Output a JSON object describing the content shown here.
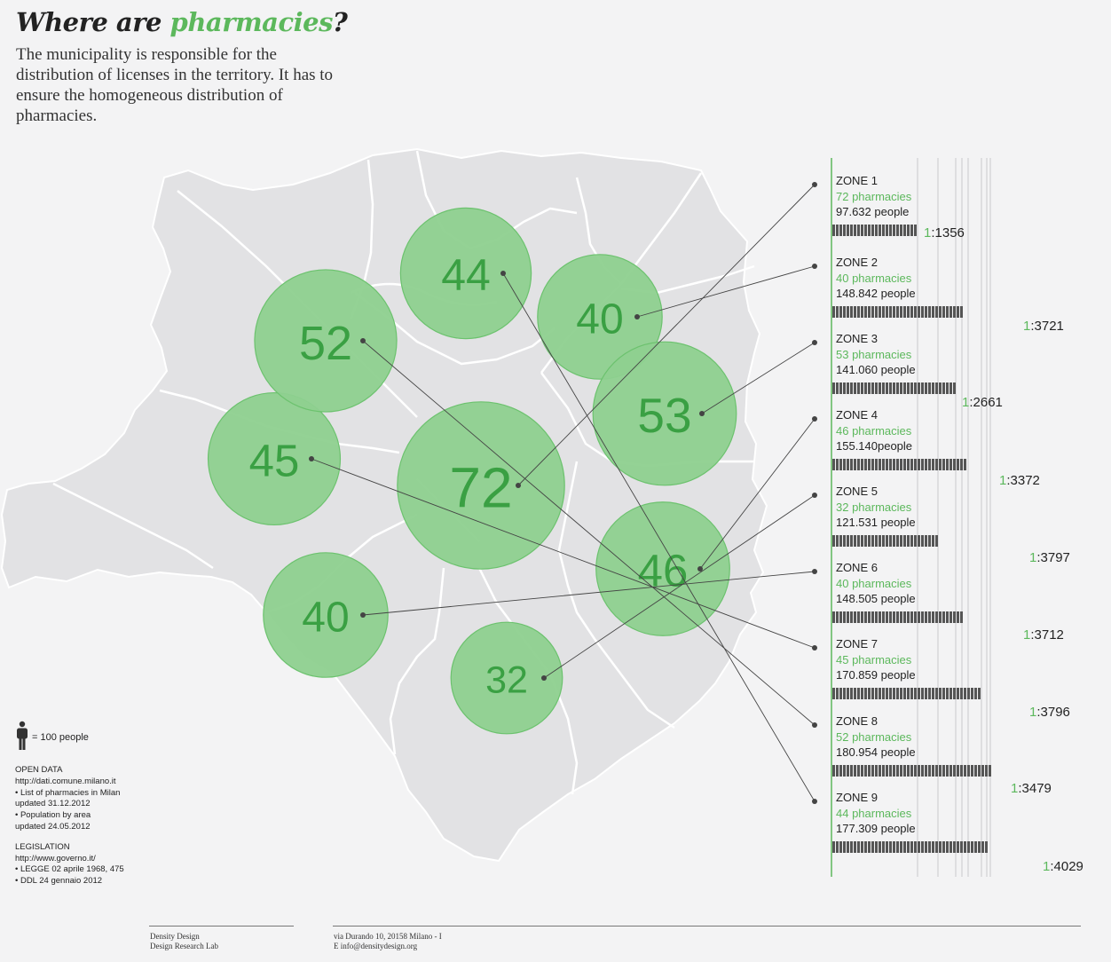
{
  "title": {
    "prefix": "Where are ",
    "highlight": "pharmacies",
    "suffix": "?"
  },
  "subtitle": "The municipality is responsible for the distribution of licenses in the territory. It has to ensure the homogeneous distribution of pharmacies.",
  "colors": {
    "accent": "#5cb85c",
    "bubble": "#8ed08f",
    "map": "#e2e2e4",
    "person": "#555555"
  },
  "legend": {
    "icon": "person-icon",
    "text": "= 100 people"
  },
  "notes": {
    "open_data_title": "OPEN DATA",
    "open_data_lines": [
      "http://dati.comune.milano.it",
      "• List of pharmacies in Milan",
      "updated 31.12.2012",
      "• Population by area",
      "updated 24.05.2012"
    ],
    "legislation_title": "LEGISLATION",
    "legislation_lines": [
      "http://www.governo.it/",
      "• LEGGE 02 aprile 1968, 475",
      "• DDL 24 gennaio 2012"
    ]
  },
  "footer": {
    "left": [
      "Density Design",
      "Design Research Lab"
    ],
    "right": [
      "via Durando 10, 20158 Milano - I",
      "E info@densitydesign.org"
    ]
  },
  "chart_data": {
    "type": "bubble-map",
    "bubbles": [
      {
        "zone": "ZONE 1",
        "value": 72
      },
      {
        "zone": "ZONE 2",
        "value": 40
      },
      {
        "zone": "ZONE 3",
        "value": 53
      },
      {
        "zone": "ZONE 4",
        "value": 46
      },
      {
        "zone": "ZONE 5",
        "value": 32
      },
      {
        "zone": "ZONE 6",
        "value": 40
      },
      {
        "zone": "ZONE 7",
        "value": 45
      },
      {
        "zone": "ZONE 8",
        "value": 52
      },
      {
        "zone": "ZONE 9",
        "value": 44
      }
    ],
    "zones": [
      {
        "name": "ZONE 1",
        "pharmacies": 72,
        "pharmacies_label": "72 pharmacies",
        "people": 97632,
        "people_label": "97.632 people",
        "ratio_one": "1",
        "ratio_rest": ":1356"
      },
      {
        "name": "ZONE 2",
        "pharmacies": 40,
        "pharmacies_label": "40 pharmacies",
        "people": 148842,
        "people_label": "148.842 people",
        "ratio_one": "1",
        "ratio_rest": ":3721"
      },
      {
        "name": "ZONE 3",
        "pharmacies": 53,
        "pharmacies_label": "53 pharmacies",
        "people": 141060,
        "people_label": "141.060 people",
        "ratio_one": "1",
        "ratio_rest": ":2661"
      },
      {
        "name": "ZONE 4",
        "pharmacies": 46,
        "pharmacies_label": "46 pharmacies",
        "people": 155140,
        "people_label": "155.140people",
        "ratio_one": "1",
        "ratio_rest": ":3372"
      },
      {
        "name": "ZONE 5",
        "pharmacies": 32,
        "pharmacies_label": "32 pharmacies",
        "people": 121531,
        "people_label": "121.531 people",
        "ratio_one": "1",
        "ratio_rest": ":3797"
      },
      {
        "name": "ZONE 6",
        "pharmacies": 40,
        "pharmacies_label": "40 pharmacies",
        "people": 148505,
        "people_label": "148.505 people",
        "ratio_one": "1",
        "ratio_rest": ":3712"
      },
      {
        "name": "ZONE 7",
        "pharmacies": 45,
        "pharmacies_label": "45 pharmacies",
        "people": 170859,
        "people_label": "170.859 people",
        "ratio_one": "1",
        "ratio_rest": ":3796"
      },
      {
        "name": "ZONE 8",
        "pharmacies": 52,
        "pharmacies_label": "52 pharmacies",
        "people": 180954,
        "people_label": "180.954 people",
        "ratio_one": "1",
        "ratio_rest": ":3479"
      },
      {
        "name": "ZONE 9",
        "pharmacies": 44,
        "pharmacies_label": "44 pharmacies",
        "people": 177309,
        "people_label": "177.309 people",
        "ratio_one": "1",
        "ratio_rest": ":4029"
      }
    ]
  }
}
